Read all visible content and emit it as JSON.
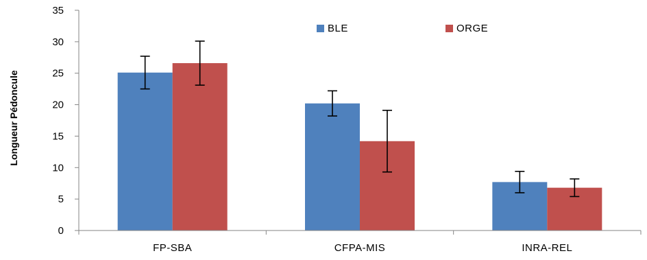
{
  "chart_data": {
    "type": "bar",
    "title": "",
    "xlabel": "",
    "ylabel": "Longueur Pédoncule",
    "ylim": [
      0,
      35
    ],
    "yticks": [
      0,
      5,
      10,
      15,
      20,
      25,
      30,
      35
    ],
    "grid": false,
    "legend_position": "top-right",
    "categories": [
      "FP-SBA",
      "CFPA-MIS",
      "INRA-REL"
    ],
    "series": [
      {
        "name": "BLE",
        "color": "#4f81bd",
        "values": [
          25.1,
          20.2,
          7.7
        ],
        "error": [
          2.6,
          2.0,
          1.7
        ]
      },
      {
        "name": "ORGE",
        "color": "#c0504d",
        "values": [
          26.6,
          14.2,
          6.8
        ],
        "error": [
          3.5,
          4.9,
          1.4
        ]
      }
    ]
  }
}
